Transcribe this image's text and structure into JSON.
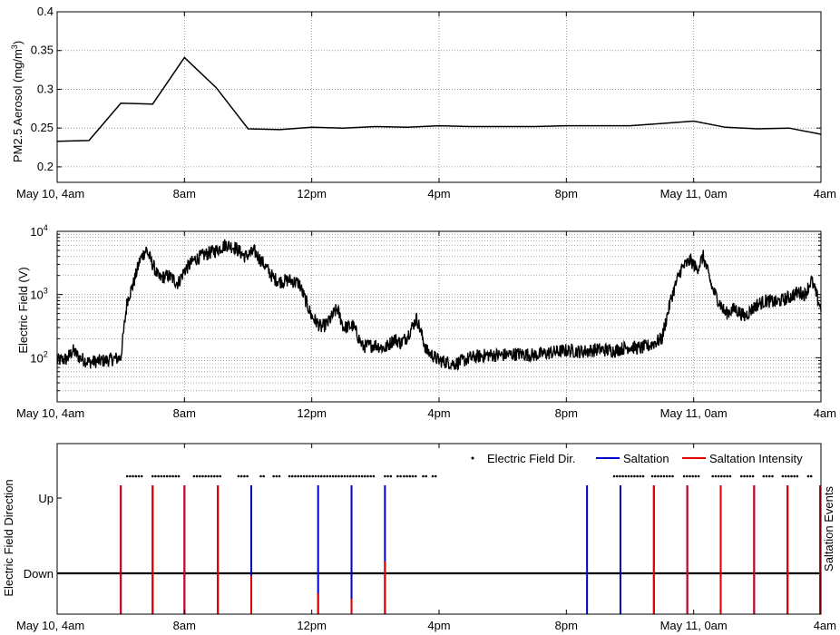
{
  "x_tick_labels": [
    "May 10, 4am",
    "8am",
    "12pm",
    "4pm",
    "8pm",
    "May 11, 0am",
    "4am"
  ],
  "x_tick_hours": [
    4,
    8,
    12,
    16,
    20,
    24,
    28
  ],
  "chart_data": [
    {
      "type": "line",
      "ylabel_main": "PM2.5 Aerosol (mg/m",
      "ylabel_sup": "3",
      "ylabel_close": ")",
      "xlim_hours": [
        4,
        28
      ],
      "ylim": [
        0.18,
        0.4
      ],
      "y_ticks": [
        0.2,
        0.25,
        0.3,
        0.35,
        0.4
      ],
      "y_tick_labels": [
        "0.2",
        "0.25",
        "0.3",
        "0.35",
        "0.4"
      ],
      "grid": true,
      "color": "#000000",
      "series": [
        {
          "x_hours": [
            4,
            5,
            6,
            7,
            8,
            9,
            10,
            11,
            12,
            13,
            14,
            15,
            16,
            17,
            18,
            19,
            20,
            21,
            22,
            23,
            24,
            25,
            26,
            27,
            28
          ],
          "values": [
            0.233,
            0.234,
            0.282,
            0.281,
            0.341,
            0.302,
            0.249,
            0.248,
            0.251,
            0.25,
            0.252,
            0.251,
            0.253,
            0.252,
            0.252,
            0.252,
            0.253,
            0.253,
            0.253,
            0.256,
            0.259,
            0.251,
            0.249,
            0.25,
            0.242
          ]
        }
      ]
    },
    {
      "type": "line",
      "ylabel": "Electric Field (V)",
      "yscale": "log",
      "xlim_hours": [
        4,
        28
      ],
      "ylim": [
        20,
        10000
      ],
      "y_tick_base": "10",
      "y_tick_exponents": [
        "2",
        "3",
        "4"
      ],
      "grid": true,
      "minor_grid": true,
      "color": "#000000",
      "series": [
        {
          "x_hours": [
            4.0,
            4.3,
            4.5,
            4.7,
            5.0,
            5.5,
            6.0,
            6.2,
            6.4,
            6.6,
            6.8,
            7.0,
            7.2,
            7.5,
            7.8,
            8.0,
            8.3,
            8.6,
            9.0,
            9.3,
            9.6,
            9.9,
            10.2,
            10.5,
            10.8,
            11.0,
            11.3,
            11.6,
            12.0,
            12.3,
            12.5,
            12.8,
            13.0,
            13.3,
            13.6,
            14.0,
            14.3,
            14.6,
            14.8,
            15.0,
            15.3,
            15.6,
            16.0,
            16.5,
            17.0,
            17.5,
            18.0,
            18.5,
            19.0,
            19.5,
            20.0,
            20.5,
            21.0,
            21.5,
            22.0,
            22.3,
            22.6,
            23.0,
            23.3,
            23.6,
            23.9,
            24.1,
            24.3,
            24.6,
            25.0,
            25.3,
            25.6,
            26.0,
            26.3,
            26.6,
            27.0,
            27.3,
            27.5,
            27.7,
            28.0
          ],
          "values": [
            90,
            95,
            130,
            100,
            85,
            90,
            100,
            800,
            1500,
            3500,
            5200,
            3000,
            1800,
            2000,
            1500,
            2400,
            3500,
            4200,
            5000,
            6200,
            5500,
            4000,
            4800,
            3000,
            1800,
            1600,
            1700,
            1500,
            450,
            300,
            350,
            600,
            300,
            320,
            150,
            160,
            140,
            200,
            170,
            220,
            420,
            130,
            90,
            80,
            100,
            110,
            110,
            115,
            110,
            120,
            130,
            125,
            135,
            130,
            150,
            140,
            155,
            200,
            900,
            2500,
            3500,
            2500,
            4000,
            1200,
            500,
            600,
            450,
            700,
            800,
            750,
            900,
            1100,
            1000,
            1700,
            600
          ]
        }
      ]
    },
    {
      "type": "scatter",
      "ylabel_left": "Electric Field Direction",
      "ylabel_right": "Saltation Events",
      "xlim_hours": [
        4,
        28
      ],
      "y_tick_labels": [
        "Up",
        "Down"
      ],
      "legend": {
        "position": "top-right",
        "entries": [
          "Electric Field Dir.",
          "Saltation",
          "Saltation Intensity"
        ]
      },
      "colors": {
        "direction": "#000000",
        "saltation": "#0000cc",
        "intensity": "#e00000"
      },
      "direction_up_intervals_hours": [
        [
          6.2,
          6.7
        ],
        [
          7.0,
          7.9
        ],
        [
          8.3,
          9.2
        ],
        [
          9.7,
          10.0
        ],
        [
          10.4,
          10.5
        ],
        [
          10.8,
          11.0
        ],
        [
          11.3,
          14.0
        ],
        [
          14.3,
          14.5
        ],
        [
          14.7,
          14.8
        ],
        [
          14.9,
          15.3
        ],
        [
          15.5,
          15.6
        ],
        [
          15.8,
          15.9
        ],
        [
          21.5,
          22.5
        ],
        [
          22.7,
          23.4
        ],
        [
          23.7,
          24.2
        ],
        [
          24.6,
          25.2
        ],
        [
          25.5,
          25.9
        ],
        [
          26.2,
          26.5
        ],
        [
          26.8,
          27.3
        ],
        [
          27.6,
          27.7
        ]
      ],
      "saltation_events": [
        {
          "hour": 6.0,
          "saltation": 1.0,
          "intensity": 1.0
        },
        {
          "hour": 7.0,
          "saltation": 1.0,
          "intensity": 1.0
        },
        {
          "hour": 8.0,
          "saltation": 1.0,
          "intensity": 1.0
        },
        {
          "hour": 9.05,
          "saltation": 1.0,
          "intensity": 1.0
        },
        {
          "hour": 10.1,
          "saltation": 1.0,
          "intensity": 0.3
        },
        {
          "hour": 12.2,
          "saltation": 1.0,
          "intensity": 0.16
        },
        {
          "hour": 13.25,
          "saltation": 1.0,
          "intensity": 0.12
        },
        {
          "hour": 14.3,
          "saltation": 1.0,
          "intensity": 0.41
        },
        {
          "hour": 20.65,
          "saltation": 1.0,
          "intensity": 0
        },
        {
          "hour": 21.7,
          "saltation": 1.0,
          "intensity": 0
        },
        {
          "hour": 22.75,
          "saltation": 1.0,
          "intensity": 1.0
        },
        {
          "hour": 23.8,
          "saltation": 1.0,
          "intensity": 1.0
        },
        {
          "hour": 24.85,
          "saltation": 1.0,
          "intensity": 1.0
        },
        {
          "hour": 25.9,
          "saltation": 1.0,
          "intensity": 1.0
        },
        {
          "hour": 26.95,
          "saltation": 1.0,
          "intensity": 1.0
        },
        {
          "hour": 28.0,
          "saltation": 1.0,
          "intensity": 1.0
        }
      ]
    }
  ]
}
